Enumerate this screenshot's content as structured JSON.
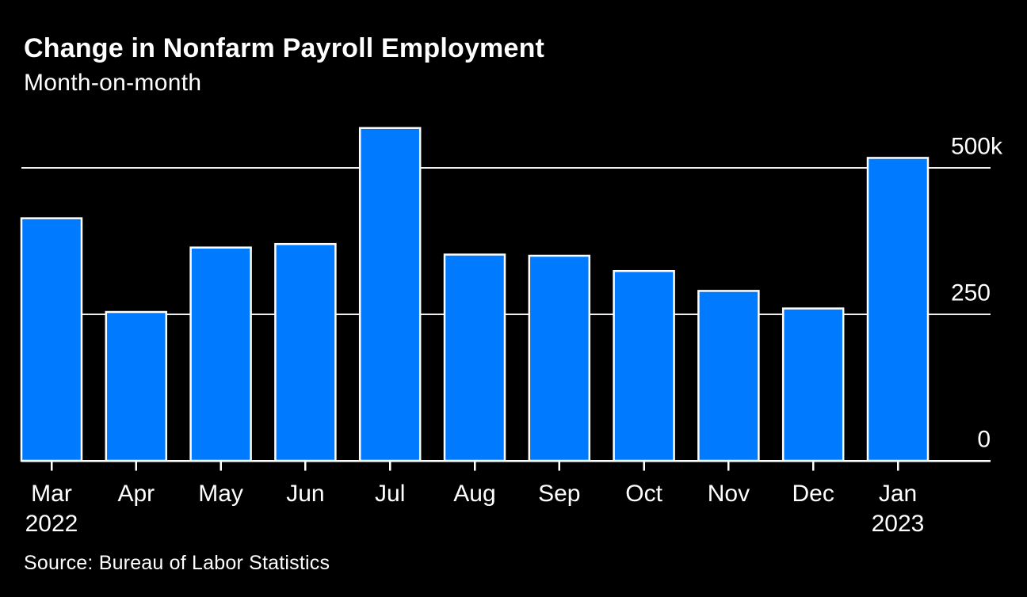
{
  "header": {
    "title": "Change in Nonfarm Payroll Employment",
    "subtitle": "Month-on-month"
  },
  "footer": {
    "source": "Source: Bureau of Labor Statistics"
  },
  "chart_data": {
    "type": "bar",
    "title": "Change in Nonfarm Payroll Employment",
    "subtitle": "Month-on-month",
    "source": "Source: Bureau of Labor Statistics",
    "categories": [
      "Mar",
      "Apr",
      "May",
      "Jun",
      "Jul",
      "Aug",
      "Sep",
      "Oct",
      "Nov",
      "Dec",
      "Jan"
    ],
    "years": [
      "2022",
      "",
      "",
      "",
      "",
      "",
      "",
      "",
      "",
      "",
      "2023"
    ],
    "values": [
      414,
      254,
      364,
      370,
      568,
      352,
      350,
      324,
      290,
      260,
      517
    ],
    "y_ticks": [
      {
        "value": 500,
        "label": "500",
        "suffix": "k"
      },
      {
        "value": 250,
        "label": "250",
        "suffix": ""
      },
      {
        "value": 0,
        "label": "0",
        "suffix": ""
      }
    ],
    "ylim": [
      0,
      570
    ],
    "grid": "horizontal",
    "legend": "none",
    "xlabel": "",
    "ylabel": "",
    "colors": {
      "background": "#000000",
      "bar": "#007AFF",
      "bar_outline": "#FFFFFF",
      "grid": "#F0F0F0",
      "axis": "#FFFFFF",
      "text": "#FFFFFF"
    }
  }
}
